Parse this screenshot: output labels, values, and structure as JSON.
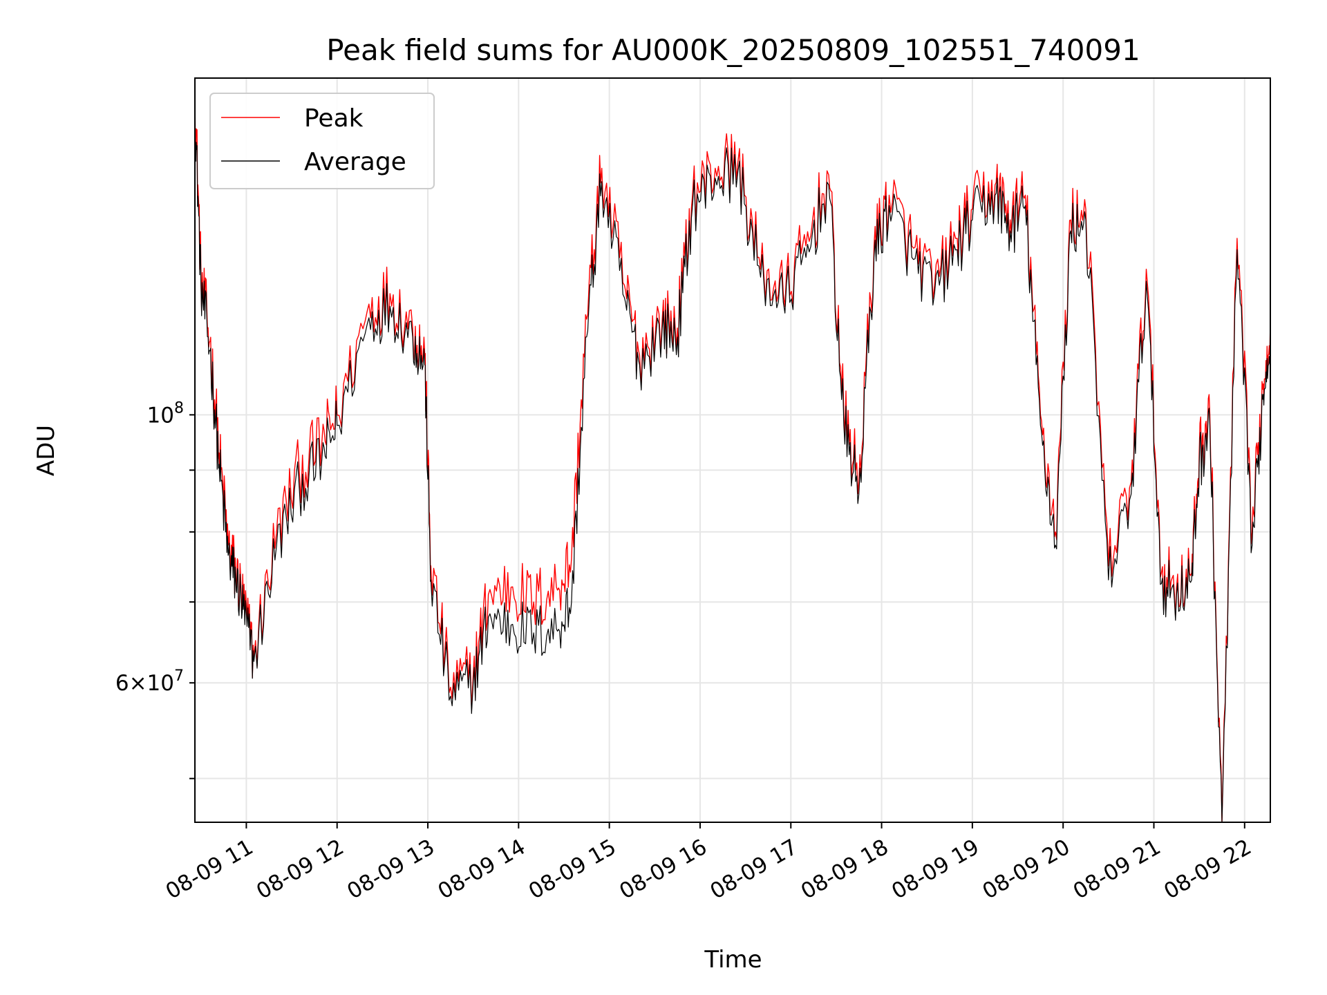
{
  "chart_data": {
    "type": "line",
    "title": "Peak field sums for AU000K_20250809_102551_740091",
    "xlabel": "Time",
    "ylabel": "ADU",
    "y_scale": "log",
    "ylim": [
      46000000,
      190000000
    ],
    "xlim": [
      "2025-08-09 10:26",
      "2025-08-09 22:17"
    ],
    "x_ticks": [
      "08-09 11",
      "08-09 12",
      "08-09 13",
      "08-09 14",
      "08-09 15",
      "08-09 16",
      "08-09 17",
      "08-09 18",
      "08-09 19",
      "08-09 20",
      "08-09 21",
      "08-09 22"
    ],
    "y_tick_values": [
      100000000,
      60000000
    ],
    "y_tick_labels": [
      "10^8",
      "6×10^7"
    ],
    "grid": true,
    "legend_position": "upper-left",
    "x": [
      "2025-08-09 10:26",
      "2025-08-09 10:30",
      "2025-08-09 10:36",
      "2025-08-09 10:42",
      "2025-08-09 10:48",
      "2025-08-09 10:53",
      "2025-08-09 10:58",
      "2025-08-09 11:05",
      "2025-08-09 11:20",
      "2025-08-09 11:35",
      "2025-08-09 11:50",
      "2025-08-09 12:00",
      "2025-08-09 12:20",
      "2025-08-09 12:35",
      "2025-08-09 12:50",
      "2025-08-09 12:58",
      "2025-08-09 13:02",
      "2025-08-09 13:15",
      "2025-08-09 13:30",
      "2025-08-09 13:40",
      "2025-08-09 13:55",
      "2025-08-09 14:10",
      "2025-08-09 14:25",
      "2025-08-09 14:35",
      "2025-08-09 14:45",
      "2025-08-09 14:55",
      "2025-08-09 15:10",
      "2025-08-09 15:20",
      "2025-08-09 15:35",
      "2025-08-09 15:45",
      "2025-08-09 15:55",
      "2025-08-09 16:10",
      "2025-08-09 16:25",
      "2025-08-09 16:40",
      "2025-08-09 16:55",
      "2025-08-09 17:10",
      "2025-08-09 17:25",
      "2025-08-09 17:35",
      "2025-08-09 17:45",
      "2025-08-09 17:55",
      "2025-08-09 18:05",
      "2025-08-09 18:20",
      "2025-08-09 18:35",
      "2025-08-09 18:50",
      "2025-08-09 19:00",
      "2025-08-09 19:15",
      "2025-08-09 19:25",
      "2025-08-09 19:35",
      "2025-08-09 19:45",
      "2025-08-09 19:55",
      "2025-08-09 20:05",
      "2025-08-09 20:15",
      "2025-08-09 20:30",
      "2025-08-09 20:45",
      "2025-08-09 20:55",
      "2025-08-09 21:05",
      "2025-08-09 21:15",
      "2025-08-09 21:25",
      "2025-08-09 21:30",
      "2025-08-09 21:37",
      "2025-08-09 21:45",
      "2025-08-09 21:55",
      "2025-08-09 22:05",
      "2025-08-09 22:12",
      "2025-08-09 22:17"
    ],
    "series": [
      {
        "name": "Peak",
        "color": "#ff0000",
        "values": [
          185000000,
          130000000,
          115000000,
          93000000,
          78000000,
          74000000,
          70000000,
          63000000,
          80000000,
          90000000,
          95000000,
          100000000,
          122000000,
          126000000,
          118000000,
          112000000,
          75000000,
          59500000,
          61000000,
          71000000,
          72000000,
          70000000,
          72000000,
          76000000,
          120000000,
          160000000,
          128000000,
          112000000,
          120000000,
          118000000,
          152000000,
          160000000,
          162000000,
          132000000,
          126000000,
          138000000,
          158000000,
          100000000,
          88000000,
          138000000,
          152000000,
          138000000,
          128000000,
          140000000,
          148000000,
          155000000,
          145000000,
          152000000,
          100000000,
          80000000,
          145000000,
          148000000,
          75000000,
          88000000,
          132000000,
          74000000,
          72000000,
          74000000,
          93000000,
          100000000,
          46000000,
          140000000,
          80000000,
          105000000,
          120000000
        ]
      },
      {
        "name": "Average",
        "color": "#000000",
        "values": [
          180000000,
          128000000,
          113000000,
          91000000,
          76500000,
          73000000,
          69000000,
          62500000,
          78000000,
          87000000,
          92000000,
          98000000,
          119000000,
          123000000,
          116000000,
          110000000,
          73000000,
          58500000,
          60000000,
          68000000,
          67000000,
          66000000,
          66500000,
          70000000,
          116000000,
          156000000,
          125000000,
          110000000,
          118000000,
          116000000,
          149000000,
          157000000,
          159000000,
          130000000,
          124000000,
          135000000,
          155000000,
          98000000,
          86000000,
          135000000,
          149000000,
          135000000,
          126000000,
          137000000,
          145000000,
          152000000,
          142000000,
          149000000,
          98000000,
          78000000,
          142000000,
          145000000,
          73000000,
          86000000,
          129000000,
          72500000,
          71000000,
          73000000,
          91000000,
          98000000,
          45500000,
          137000000,
          78000000,
          103000000,
          117000000
        ]
      }
    ]
  }
}
